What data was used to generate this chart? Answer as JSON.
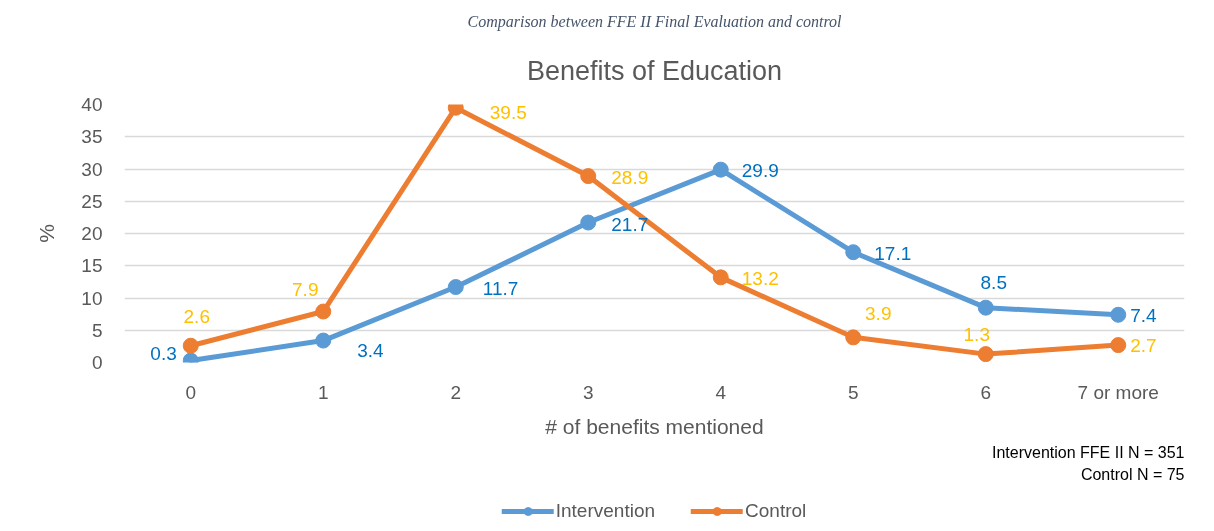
{
  "chart_data": {
    "type": "line",
    "title": "Benefits of Education",
    "xlabel": "# of benefits mentioned",
    "ylabel": "%",
    "categories": [
      "0",
      "1",
      "2",
      "3",
      "4",
      "5",
      "6",
      "7 or more"
    ],
    "series": [
      {
        "name": "Intervention",
        "color": "#5b9bd5",
        "values": [
          0.3,
          3.4,
          11.7,
          21.7,
          29.9,
          17.1,
          8.5,
          7.4
        ]
      },
      {
        "name": "Control",
        "color": "#ed7d31",
        "values": [
          2.6,
          7.9,
          39.5,
          28.9,
          13.2,
          3.9,
          1.3,
          2.7
        ]
      }
    ],
    "ylim": [
      0,
      40
    ],
    "yticks": [
      0,
      5,
      10,
      15,
      20,
      25,
      30,
      35,
      40
    ],
    "grid": "y",
    "legend": "bottom",
    "marker": "circle",
    "line_style": "solid",
    "data_labels": true,
    "annotations": [
      "Comparison between FFE II Final Evaluation and control",
      "Intervention FFE II N = 351",
      "Control N = 75"
    ]
  }
}
